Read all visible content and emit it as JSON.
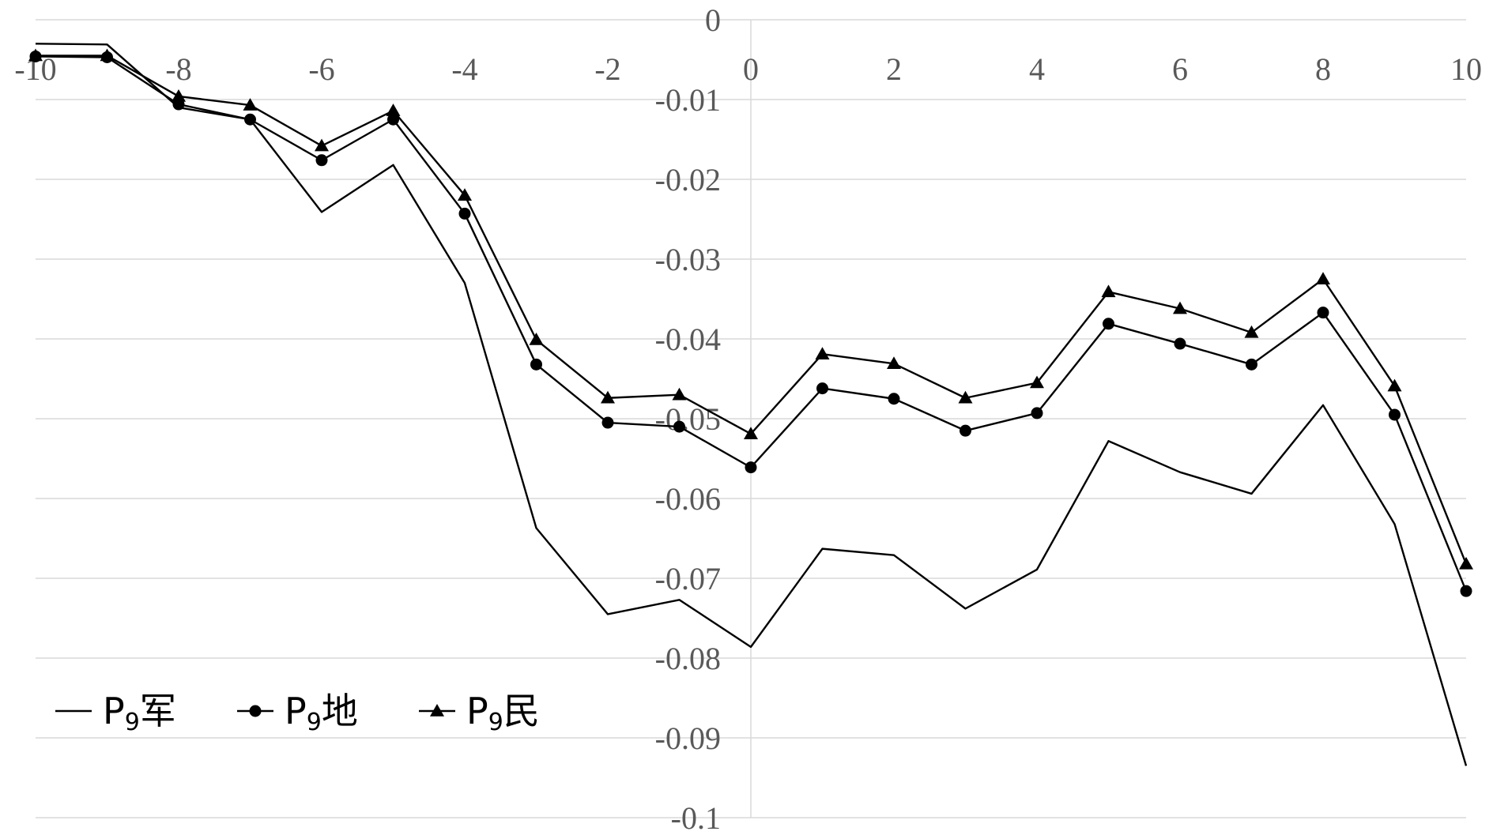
{
  "chart_data": {
    "type": "line",
    "title": "",
    "xlabel": "",
    "ylabel": "",
    "xlim": [
      -10,
      10
    ],
    "ylim": [
      -0.1,
      0
    ],
    "grid": true,
    "legend_position": "bottom-left",
    "x_ticks": [
      "-10",
      "-8",
      "-6",
      "-4",
      "-2",
      "0",
      "2",
      "4",
      "6",
      "8",
      "10"
    ],
    "y_ticks": [
      "0",
      "-0.01",
      "-0.02",
      "-0.03",
      "-0.04",
      "-0.05",
      "-0.06",
      "-0.07",
      "-0.08",
      "-0.09",
      "-0.1"
    ],
    "x": [
      -10,
      -9,
      -8,
      -7,
      -6,
      -5,
      -4,
      -3,
      -2,
      -1,
      0,
      1,
      2,
      3,
      4,
      5,
      6,
      7,
      8,
      9,
      10
    ],
    "series": [
      {
        "name": "P9军",
        "name_base": "P",
        "name_sub": "9",
        "name_suffix": "军",
        "marker": "none",
        "color": "#000000",
        "values": [
          -0.003,
          -0.0031,
          -0.011,
          -0.0125,
          -0.0241,
          -0.0182,
          -0.033,
          -0.0637,
          -0.0745,
          -0.0727,
          -0.0786,
          -0.0663,
          -0.0671,
          -0.0738,
          -0.0689,
          -0.0528,
          -0.0567,
          -0.0594,
          -0.0483,
          -0.0632,
          -0.0935
        ]
      },
      {
        "name": "P9地",
        "name_base": "P",
        "name_sub": "9",
        "name_suffix": "地",
        "marker": "circle",
        "color": "#000000",
        "values": [
          -0.0046,
          -0.0047,
          -0.0106,
          -0.0125,
          -0.0176,
          -0.0125,
          -0.0243,
          -0.0432,
          -0.0505,
          -0.051,
          -0.0561,
          -0.0462,
          -0.0475,
          -0.0515,
          -0.0493,
          -0.0381,
          -0.0406,
          -0.0432,
          -0.0367,
          -0.0495,
          -0.0716
        ]
      },
      {
        "name": "P9民",
        "name_base": "P",
        "name_sub": "9",
        "name_suffix": "民",
        "marker": "triangle",
        "color": "#000000",
        "values": [
          -0.0045,
          -0.0045,
          -0.0096,
          -0.0107,
          -0.0158,
          -0.0114,
          -0.022,
          -0.0401,
          -0.0474,
          -0.047,
          -0.0519,
          -0.0419,
          -0.0431,
          -0.0474,
          -0.0455,
          -0.0341,
          -0.0362,
          -0.0392,
          -0.0325,
          -0.0459,
          -0.0682
        ]
      }
    ]
  }
}
